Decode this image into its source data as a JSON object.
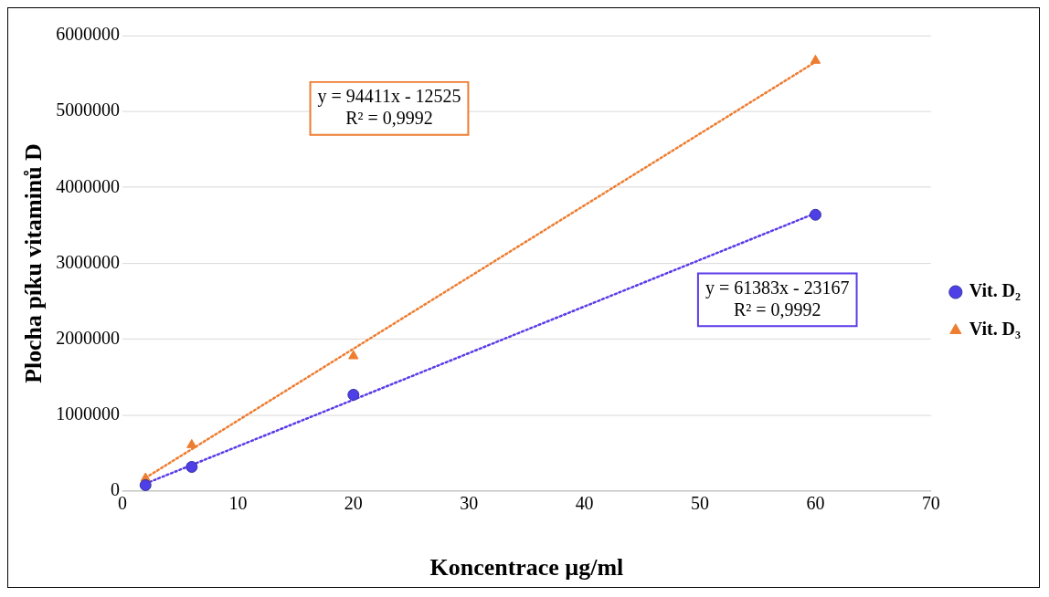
{
  "chart_data": {
    "type": "scatter",
    "xlabel": "Koncentrace µg/ml",
    "ylabel": "Plocha píku vitaminů D",
    "xlim": [
      0,
      70
    ],
    "xticks": [
      0,
      10,
      20,
      30,
      40,
      50,
      60,
      70
    ],
    "ylim": [
      0,
      6000000
    ],
    "yticks": [
      0,
      1000000,
      2000000,
      3000000,
      4000000,
      5000000,
      6000000
    ],
    "grid": "y",
    "legend": "right",
    "series": [
      {
        "name": "Vit. D₂",
        "marker": "circle",
        "color": "#4f3fe6",
        "x": [
          2,
          6,
          20,
          60
        ],
        "values": [
          80000,
          320000,
          1270000,
          3640000
        ]
      },
      {
        "name": "Vit. D₃",
        "marker": "triangle",
        "color": "#ed7d31",
        "x": [
          2,
          6,
          20,
          60
        ],
        "values": [
          170000,
          610000,
          1780000,
          5670000
        ]
      },
      {
        "type": "line",
        "marker": "none",
        "line_style": "dotted",
        "color": "#ed7d31",
        "x": [
          2,
          60
        ],
        "values": [
          176000,
          5652000
        ]
      },
      {
        "type": "line",
        "marker": "none",
        "line_style": "dotted",
        "color": "#5b3be8",
        "x": [
          2,
          60
        ],
        "values": [
          100000,
          3660000
        ]
      }
    ],
    "annotations": [
      "y = 94411x - 12525\nR² = 0,9992",
      "y = 61383x - 23167\nR² = 0,9992"
    ]
  }
}
